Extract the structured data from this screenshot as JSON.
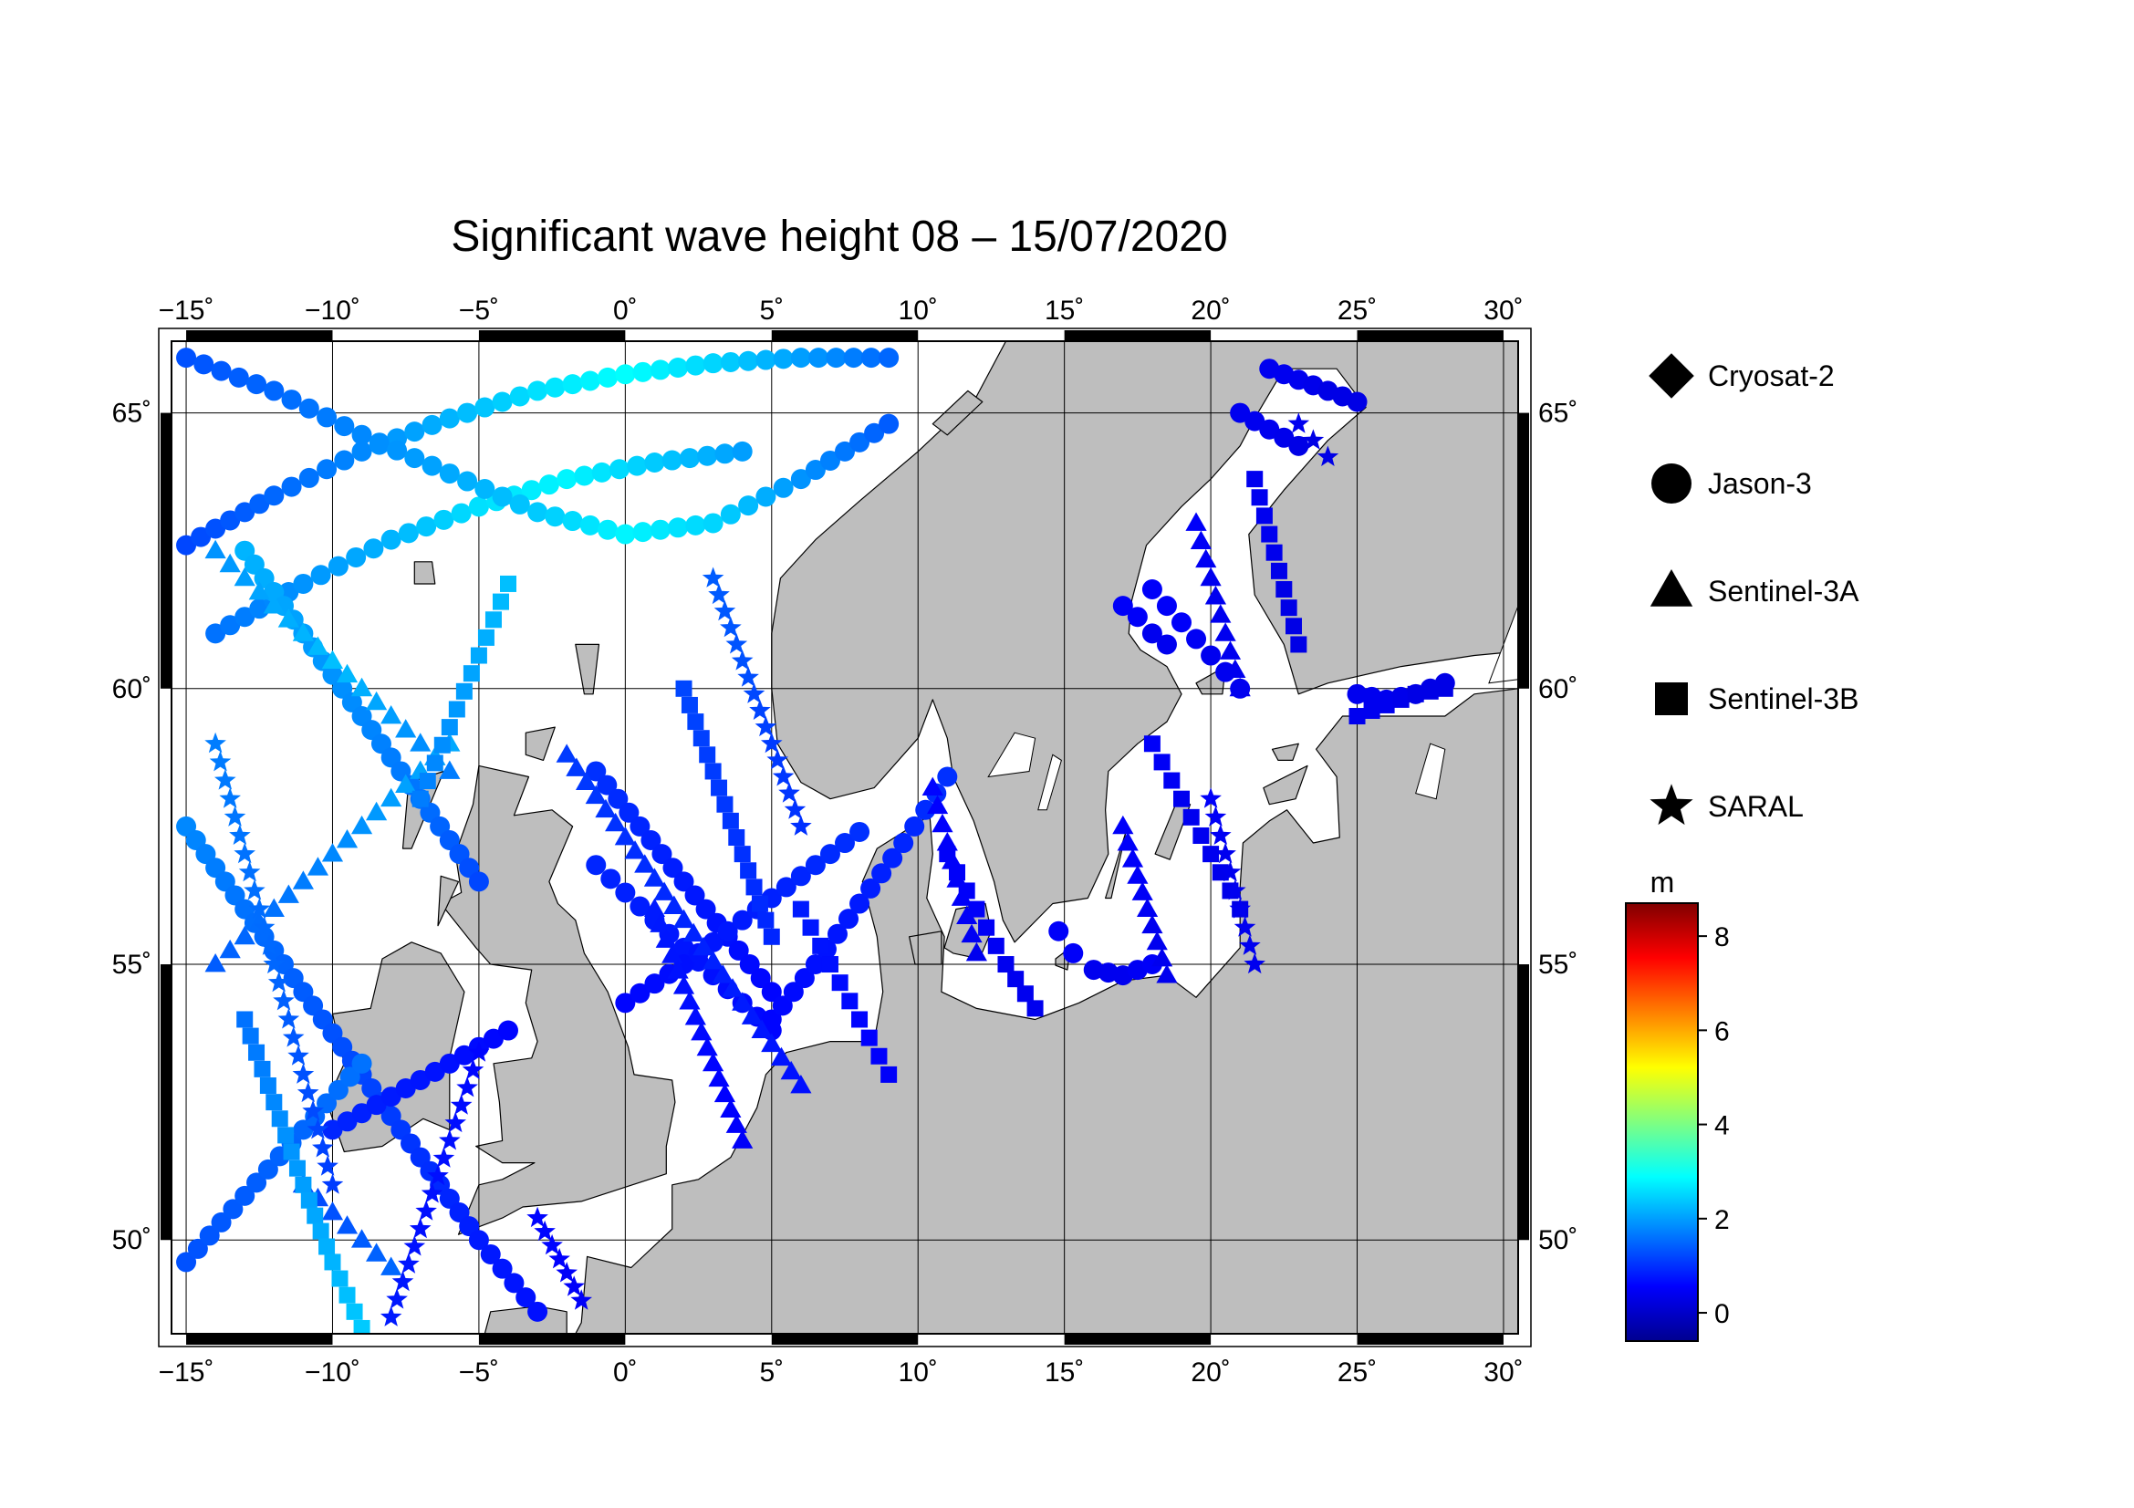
{
  "title": "Significant wave height 08 – 15/07/2020",
  "map": {
    "lon_range": [
      -15.5,
      30.5
    ],
    "lat_range": [
      48.3,
      66.3
    ],
    "lon_ticks": [
      -15,
      -10,
      -5,
      0,
      5,
      10,
      15,
      20,
      25,
      30
    ],
    "lon_tick_labels": [
      "−15˚",
      "−10˚",
      "−5˚",
      "0˚",
      "5˚",
      "10˚",
      "15˚",
      "20˚",
      "25˚",
      "30˚"
    ],
    "lat_ticks": [
      50,
      55,
      60,
      65
    ],
    "lat_tick_labels": [
      "50˚",
      "55˚",
      "60˚",
      "65˚"
    ],
    "land_color": "#bebebe",
    "sea_color": "#ffffff",
    "grid": true
  },
  "legend": {
    "items": [
      {
        "name": "Cryosat-2",
        "marker": "diamond"
      },
      {
        "name": "Jason-3",
        "marker": "circle"
      },
      {
        "name": "Sentinel-3A",
        "marker": "triangle"
      },
      {
        "name": "Sentinel-3B",
        "marker": "square"
      },
      {
        "name": "SARAL",
        "marker": "star"
      }
    ]
  },
  "colorbar": {
    "unit": "m",
    "min": -0.6,
    "max": 8.7,
    "ticks": [
      0,
      2,
      4,
      6,
      8
    ],
    "tick_labels": [
      "0",
      "2",
      "4",
      "6",
      "8"
    ],
    "colormap": [
      "#00008f",
      "#0000ff",
      "#0080ff",
      "#00ffff",
      "#80ff80",
      "#ffff00",
      "#ff8000",
      "#ff0000",
      "#800000"
    ]
  },
  "chart_data": {
    "type": "scatter",
    "title": "Significant wave height 08 – 15/07/2020",
    "xlabel": "",
    "ylabel": "",
    "xlim": [
      -15.5,
      30.5
    ],
    "ylim": [
      48.3,
      66.3
    ],
    "color_scale": {
      "unit": "m",
      "min": -0.6,
      "max": 8.7
    },
    "series": [
      {
        "name": "Jason-3",
        "marker": "circle",
        "tracks": [
          {
            "lon": [
              -15,
              -12,
              -9,
              -6,
              -3,
              0,
              3,
              6,
              9
            ],
            "lat": [
              62.6,
              63.5,
              64.3,
              64.9,
              65.4,
              65.7,
              65.9,
              66.0,
              66.0
            ],
            "swh": [
              1.2,
              1.5,
              1.8,
              2.2,
              2.6,
              2.9,
              2.5,
              2.0,
              1.5
            ]
          },
          {
            "lon": [
              -14,
              -11,
              -8,
              -5,
              -2,
              1,
              4
            ],
            "lat": [
              61.0,
              61.9,
              62.7,
              63.3,
              63.8,
              64.1,
              64.3
            ],
            "swh": [
              1.6,
              1.9,
              2.2,
              2.6,
              2.8,
              2.4,
              2.0
            ]
          },
          {
            "lon": [
              -15,
              -12,
              -9,
              -6,
              -3,
              0,
              3,
              6,
              9
            ],
            "lat": [
              66.0,
              65.4,
              64.6,
              63.9,
              63.2,
              62.8,
              63.0,
              63.8,
              64.8
            ],
            "swh": [
              1.3,
              1.5,
              1.8,
              2.1,
              2.4,
              2.8,
              2.5,
              1.9,
              1.4
            ]
          },
          {
            "lon": [
              -15,
              -13,
              -11,
              -9,
              -7,
              -5,
              -3
            ],
            "lat": [
              57.5,
              56.0,
              54.5,
              53.0,
              51.5,
              50.0,
              48.7
            ],
            "swh": [
              1.8,
              1.6,
              1.4,
              1.2,
              1.0,
              0.8,
              0.7
            ]
          },
          {
            "lon": [
              -13,
              -11,
              -9,
              -7,
              -5
            ],
            "lat": [
              62.5,
              61.0,
              59.5,
              58.0,
              56.5
            ],
            "swh": [
              2.2,
              2.0,
              1.8,
              1.6,
              1.2
            ]
          },
          {
            "lon": [
              -10,
              -8,
              -6,
              -4
            ],
            "lat": [
              52.0,
              52.6,
              53.2,
              53.8
            ],
            "swh": [
              0.9,
              0.8,
              0.7,
              0.6
            ]
          },
          {
            "lon": [
              -15,
              -13,
              -11,
              -9
            ],
            "lat": [
              49.6,
              50.8,
              52.0,
              53.2
            ],
            "swh": [
              1.3,
              1.4,
              1.5,
              1.6
            ]
          },
          {
            "lon": [
              -1,
              0.5,
              2,
              3.5,
              5
            ],
            "lat": [
              58.5,
              57.5,
              56.5,
              55.5,
              54.5
            ],
            "swh": [
              1.0,
              0.9,
              0.8,
              0.7,
              0.6
            ]
          },
          {
            "lon": [
              -1,
              1,
              3,
              5
            ],
            "lat": [
              56.8,
              55.8,
              54.8,
              53.8
            ],
            "swh": [
              0.9,
              0.8,
              0.7,
              0.6
            ]
          },
          {
            "lon": [
              0,
              2,
              4,
              6,
              8
            ],
            "lat": [
              54.3,
              55.0,
              55.8,
              56.6,
              57.4
            ],
            "swh": [
              0.6,
              0.7,
              0.8,
              0.9,
              1.0
            ]
          },
          {
            "lon": [
              5,
              6.5,
              8,
              9.5,
              11
            ],
            "lat": [
              54.0,
              55.0,
              56.1,
              57.2,
              58.4
            ],
            "swh": [
              0.6,
              0.7,
              0.8,
              0.9,
              1.0
            ]
          },
          {
            "lon": [
              14.8,
              15.3,
              16,
              17,
              18
            ],
            "lat": [
              55.6,
              55.2,
              54.9,
              54.8,
              55.0
            ],
            "swh": [
              0.5,
              0.5,
              0.4,
              0.4,
              0.5
            ]
          },
          {
            "lon": [
              17,
              17.5,
              18,
              18.5
            ],
            "lat": [
              61.5,
              61.3,
              61.0,
              60.8
            ],
            "swh": [
              0.5,
              0.5,
              0.4,
              0.4
            ]
          },
          {
            "lon": [
              18,
              19,
              20,
              21
            ],
            "lat": [
              61.8,
              61.2,
              60.6,
              60.0
            ],
            "swh": [
              0.5,
              0.5,
              0.4,
              0.4
            ]
          },
          {
            "lon": [
              21,
              22,
              23
            ],
            "lat": [
              65.0,
              64.7,
              64.4
            ],
            "swh": [
              0.4,
              0.4,
              0.3
            ]
          },
          {
            "lon": [
              22,
              23,
              24,
              25
            ],
            "lat": [
              65.8,
              65.6,
              65.4,
              65.2
            ],
            "swh": [
              0.4,
              0.4,
              0.3,
              0.3
            ]
          },
          {
            "lon": [
              25,
              26,
              27,
              28
            ],
            "lat": [
              59.9,
              59.8,
              59.9,
              60.1
            ],
            "swh": [
              0.4,
              0.4,
              0.3,
              0.3
            ]
          }
        ]
      },
      {
        "name": "Sentinel-3A",
        "marker": "triangle",
        "tracks": [
          {
            "lon": [
              -14,
              -12,
              -10,
              -8,
              -6
            ],
            "lat": [
              62.5,
              61.5,
              60.5,
              59.5,
              58.5
            ],
            "swh": [
              1.9,
              2.1,
              2.3,
              2.0,
              1.7
            ]
          },
          {
            "lon": [
              -14,
              -12,
              -10,
              -8,
              -6
            ],
            "lat": [
              55.0,
              56.0,
              57.0,
              58.0,
              59.0
            ],
            "swh": [
              1.4,
              1.6,
              1.8,
              2.0,
              2.1
            ]
          },
          {
            "lon": [
              -2,
              0,
              2,
              4,
              6
            ],
            "lat": [
              58.8,
              57.3,
              55.8,
              54.3,
              52.8
            ],
            "swh": [
              1.1,
              1.0,
              0.9,
              0.8,
              0.7
            ]
          },
          {
            "lon": [
              1,
              2,
              3,
              4
            ],
            "lat": [
              56.0,
              54.6,
              53.2,
              51.8
            ],
            "swh": [
              0.8,
              0.7,
              0.6,
              0.5
            ]
          },
          {
            "lon": [
              10.5,
              11,
              11.5,
              12
            ],
            "lat": [
              58.2,
              57.2,
              56.2,
              55.2
            ],
            "swh": [
              0.6,
              0.5,
              0.5,
              0.4
            ]
          },
          {
            "lon": [
              17,
              17.5,
              18,
              18.5
            ],
            "lat": [
              57.5,
              56.6,
              55.7,
              54.8
            ],
            "swh": [
              0.5,
              0.5,
              0.4,
              0.4
            ]
          },
          {
            "lon": [
              19.5,
              20,
              20.5,
              21
            ],
            "lat": [
              63.0,
              62.0,
              61.0,
              60.0
            ],
            "swh": [
              0.5,
              0.4,
              0.4,
              0.4
            ]
          },
          {
            "lon": [
              -11,
              -10,
              -9,
              -8
            ],
            "lat": [
              51.0,
              50.5,
              50.0,
              49.5
            ],
            "swh": [
              1.2,
              1.3,
              1.4,
              1.5
            ]
          }
        ]
      },
      {
        "name": "Sentinel-3B",
        "marker": "square",
        "tracks": [
          {
            "lon": [
              -13,
              -12,
              -11,
              -10,
              -9
            ],
            "lat": [
              54.0,
              52.5,
              51.0,
              49.6,
              48.4
            ],
            "swh": [
              1.6,
              1.8,
              2.0,
              2.2,
              2.4
            ]
          },
          {
            "lon": [
              -7,
              -6,
              -5,
              -4
            ],
            "lat": [
              58.0,
              59.3,
              60.6,
              61.9
            ],
            "swh": [
              1.7,
              1.9,
              2.1,
              2.3
            ]
          },
          {
            "lon": [
              2,
              3,
              4,
              5
            ],
            "lat": [
              60.0,
              58.5,
              57.0,
              55.5
            ],
            "swh": [
              1.2,
              1.1,
              1.0,
              0.9
            ]
          },
          {
            "lon": [
              6,
              7,
              8,
              9
            ],
            "lat": [
              56.0,
              55.0,
              54.0,
              53.0
            ],
            "swh": [
              0.8,
              0.7,
              0.6,
              0.5
            ]
          },
          {
            "lon": [
              11,
              12,
              13,
              14
            ],
            "lat": [
              57.0,
              56.0,
              55.0,
              54.2
            ],
            "swh": [
              0.5,
              0.5,
              0.4,
              0.4
            ]
          },
          {
            "lon": [
              18,
              19,
              20,
              21
            ],
            "lat": [
              59.0,
              58.0,
              57.0,
              56.0
            ],
            "swh": [
              0.5,
              0.4,
              0.4,
              0.3
            ]
          },
          {
            "lon": [
              21.5,
              22,
              22.5,
              23
            ],
            "lat": [
              63.8,
              62.8,
              61.8,
              60.8
            ],
            "swh": [
              0.4,
              0.4,
              0.3,
              0.3
            ]
          },
          {
            "lon": [
              25,
              26,
              27,
              28
            ],
            "lat": [
              59.5,
              59.7,
              59.9,
              60.0
            ],
            "swh": [
              0.4,
              0.4,
              0.3,
              0.3
            ]
          }
        ]
      },
      {
        "name": "SARAL",
        "marker": "star",
        "tracks": [
          {
            "lon": [
              -14,
              -13,
              -12,
              -11,
              -10
            ],
            "lat": [
              59.0,
              57.0,
              55.0,
              53.0,
              51.0
            ],
            "swh": [
              1.7,
              1.6,
              1.5,
              1.3,
              1.1
            ]
          },
          {
            "lon": [
              -8,
              -7,
              -6,
              -5
            ],
            "lat": [
              48.6,
              50.2,
              51.8,
              53.4
            ],
            "swh": [
              0.8,
              0.7,
              0.7,
              0.6
            ]
          },
          {
            "lon": [
              -3,
              -2.5,
              -2,
              -1.5
            ],
            "lat": [
              50.4,
              49.9,
              49.4,
              48.9
            ],
            "swh": [
              0.6,
              0.6,
              0.5,
              0.5
            ]
          },
          {
            "lon": [
              3,
              4,
              5,
              6
            ],
            "lat": [
              62.0,
              60.5,
              59.0,
              57.5
            ],
            "swh": [
              1.4,
              1.3,
              1.1,
              1.0
            ]
          },
          {
            "lon": [
              20,
              20.5,
              21,
              21.5
            ],
            "lat": [
              58.0,
              57.0,
              56.0,
              55.0
            ],
            "swh": [
              0.5,
              0.4,
              0.4,
              0.4
            ]
          },
          {
            "lon": [
              23,
              23.5,
              24
            ],
            "lat": [
              64.8,
              64.5,
              64.2
            ],
            "swh": [
              0.4,
              0.3,
              0.3
            ]
          }
        ]
      }
    ]
  }
}
